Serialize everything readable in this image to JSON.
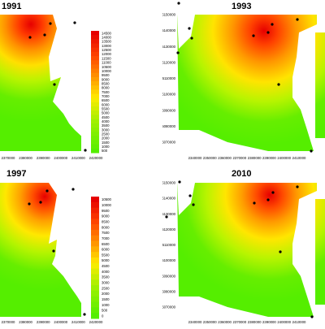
{
  "panels": [
    {
      "id": "p1991",
      "year": "1991",
      "legend": [
        "14500",
        "14000",
        "13500",
        "13000",
        "12500",
        "12000",
        "11500",
        "11000",
        "10500",
        "10000",
        "9500",
        "9000",
        "8500",
        "8000",
        "7500",
        "7000",
        "6500",
        "6000",
        "5500",
        "5000",
        "4500",
        "4000",
        "3500",
        "3000",
        "2500",
        "2000",
        "1500",
        "1000",
        "500"
      ],
      "x_ticks": [
        "2370000",
        "2380000",
        "2390000",
        "2400000",
        "2410000",
        "2420000"
      ],
      "y_ticks": []
    },
    {
      "id": "p1993",
      "year": "1993",
      "legend": [],
      "x_ticks": [
        "2340000",
        "2350000",
        "2360000",
        "2370000",
        "2380000",
        "2390000",
        "2400000",
        "2410000"
      ],
      "y_ticks": [
        "5150000",
        "5140000",
        "5130000",
        "5120000",
        "5110000",
        "5100000",
        "5090000",
        "5080000",
        "5070000"
      ]
    },
    {
      "id": "p1997",
      "year": "1997",
      "legend": [
        "10500",
        "10000",
        "9500",
        "9000",
        "8500",
        "8000",
        "7500",
        "7000",
        "6500",
        "6000",
        "5500",
        "5000",
        "4500",
        "4000",
        "3500",
        "3000",
        "2500",
        "2000",
        "1500",
        "1000",
        "500",
        "0"
      ],
      "x_ticks": [
        "2370000",
        "2380000",
        "2390000",
        "2400000",
        "2410000",
        "2420000"
      ],
      "y_ticks": []
    },
    {
      "id": "p2010",
      "year": "2010",
      "legend": [],
      "x_ticks": [
        "2340000",
        "2350000",
        "2360000",
        "2370000",
        "2380000",
        "2390000",
        "2400000",
        "2410000"
      ],
      "y_ticks": [
        "5150000",
        "5140000",
        "5130000",
        "5120000",
        "5110000",
        "5100000",
        "5090000",
        "5080000",
        "5070000"
      ]
    }
  ],
  "colors": {
    "max": "#e60000",
    "high": "#ff7f00",
    "mid": "#ffff00",
    "low": "#9cf000",
    "min": "#55ee00",
    "point": "#000000",
    "outside": "#ffffff"
  }
}
